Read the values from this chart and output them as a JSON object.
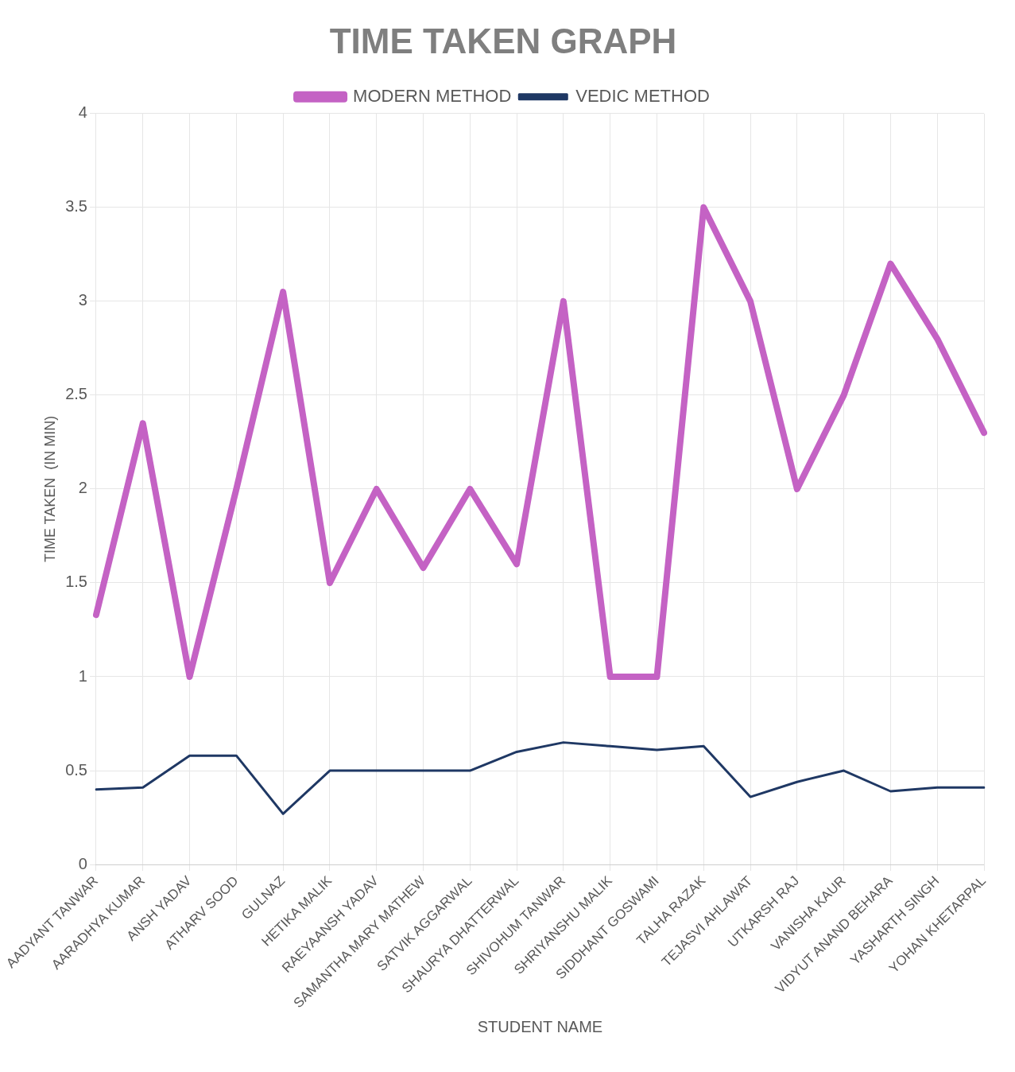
{
  "chart_data": {
    "type": "line",
    "title": "TIME TAKEN GRAPH",
    "xlabel": "STUDENT NAME",
    "ylabel": "TIME TAKEN  (IN MIN)",
    "categories": [
      "AADYANT TANWAR",
      "AARADHYA KUMAR",
      "ANSH YADAV",
      "ATHARV SOOD",
      "GULNAZ",
      "HETIKA MALIK",
      "RAEYAANSH YADAV",
      "SAMANTHA MARY MATHEW",
      "SATVIK AGGARWAL",
      "SHAURYA DHATTERWAL",
      "SHIVOHUM TANWAR",
      "SHRIYANSHU MALIK",
      "SIDDHANT GOSWAMI",
      "TALHA RAZAK",
      "TEJASVI AHLAWAT",
      "UTKARSH RAJ",
      "VANISHA KAUR",
      "VIDYUT ANAND BEHARA",
      "YASHARTH SINGH",
      "YOHAN KHETARPAL"
    ],
    "series": [
      {
        "name": "MODERN METHOD",
        "color": "#c462c4",
        "values": [
          1.33,
          2.35,
          1.0,
          2.0,
          3.05,
          1.5,
          2.0,
          1.58,
          2.0,
          1.6,
          3.0,
          1.0,
          1.0,
          3.5,
          3.0,
          2.0,
          2.5,
          3.2,
          2.8,
          2.3
        ]
      },
      {
        "name": "VEDIC METHOD",
        "color": "#1f3864",
        "values": [
          0.4,
          0.41,
          0.58,
          0.58,
          0.27,
          0.5,
          0.5,
          0.5,
          0.5,
          0.6,
          0.65,
          0.63,
          0.61,
          0.63,
          0.36,
          0.44,
          0.5,
          0.39,
          0.41,
          0.41
        ]
      }
    ],
    "ylim": [
      0,
      4
    ],
    "yticks": [
      0,
      0.5,
      1,
      1.5,
      2,
      2.5,
      3,
      3.5,
      4
    ],
    "grid": true,
    "legend": "top",
    "marker": "none",
    "line_style": "solid"
  }
}
